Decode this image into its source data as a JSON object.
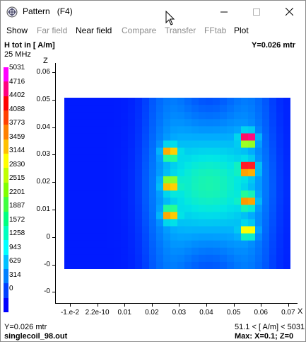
{
  "window": {
    "title": "Pattern   (F4)"
  },
  "menu": {
    "items": [
      {
        "label": "Show",
        "enabled": true
      },
      {
        "label": "Far field",
        "enabled": false
      },
      {
        "label": "Near field",
        "enabled": true
      },
      {
        "label": "Compare",
        "enabled": false
      },
      {
        "label": "Transfer",
        "enabled": false
      },
      {
        "label": "FFtab",
        "enabled": false
      },
      {
        "label": "Plot",
        "enabled": true
      }
    ]
  },
  "header": {
    "quantity": "H tot in [ A/m]",
    "frequency": "25 MHz",
    "y_value": "Y=0.026 mtr"
  },
  "legend": {
    "values": [
      "5031",
      "4716",
      "4402",
      "4088",
      "3773",
      "3459",
      "3144",
      "2830",
      "2515",
      "2201",
      "1887",
      "1572",
      "1258",
      "943",
      "629",
      "314",
      "0"
    ],
    "colors": [
      "#ff00ff",
      "#ff0080",
      "#ff0000",
      "#ff4000",
      "#ff8000",
      "#ffc000",
      "#ffff00",
      "#c0ff00",
      "#80ff00",
      "#40ff40",
      "#00ff80",
      "#00ffc0",
      "#00ffff",
      "#00c0ff",
      "#0080ff",
      "#0040ff",
      "#0000ff"
    ]
  },
  "axes": {
    "z_label": "Z",
    "x_label": "X",
    "y_ticks": [
      "0.06",
      "0.05",
      "0.04",
      "0.03",
      "0.02",
      "0.01",
      "0",
      "-0",
      "-0"
    ],
    "x_ticks": [
      "-1.e-2",
      "2.2e-10",
      "0.01",
      "0.02",
      "0.03",
      "0.04",
      "0.05",
      "0.06",
      "0.07"
    ]
  },
  "footer": {
    "y_value": "Y=0.026 mtr",
    "filename": "singlecoil_98.out",
    "range": "51.1 < [ A/m] < 5031",
    "max": "Max: X=0.1; Z=0"
  },
  "chart_data": {
    "type": "heatmap",
    "title": "H tot in [ A/m]",
    "xlabel": "X",
    "ylabel": "Z",
    "x_ticks": [
      "-1.e-2",
      "2.2e-10",
      "0.01",
      "0.02",
      "0.03",
      "0.04",
      "0.05",
      "0.06",
      "0.07"
    ],
    "y_ticks": [
      "0.06",
      "0.05",
      "0.04",
      "0.03",
      "0.02",
      "0.01",
      "0",
      "-0",
      "-0"
    ],
    "color_range": [
      0,
      5031
    ],
    "hotspots": [
      {
        "x": 0.03,
        "z": 0.031,
        "value": 3144
      },
      {
        "x": 0.03,
        "z": 0.019,
        "value": 3144
      },
      {
        "x": 0.03,
        "z": 0.008,
        "value": 3144
      },
      {
        "x": 0.056,
        "z": 0.036,
        "value": 5031
      },
      {
        "x": 0.056,
        "z": 0.025,
        "value": 5031
      },
      {
        "x": 0.056,
        "z": 0.013,
        "value": 3144
      },
      {
        "x": 0.056,
        "z": 0.002,
        "value": 2830
      }
    ]
  }
}
